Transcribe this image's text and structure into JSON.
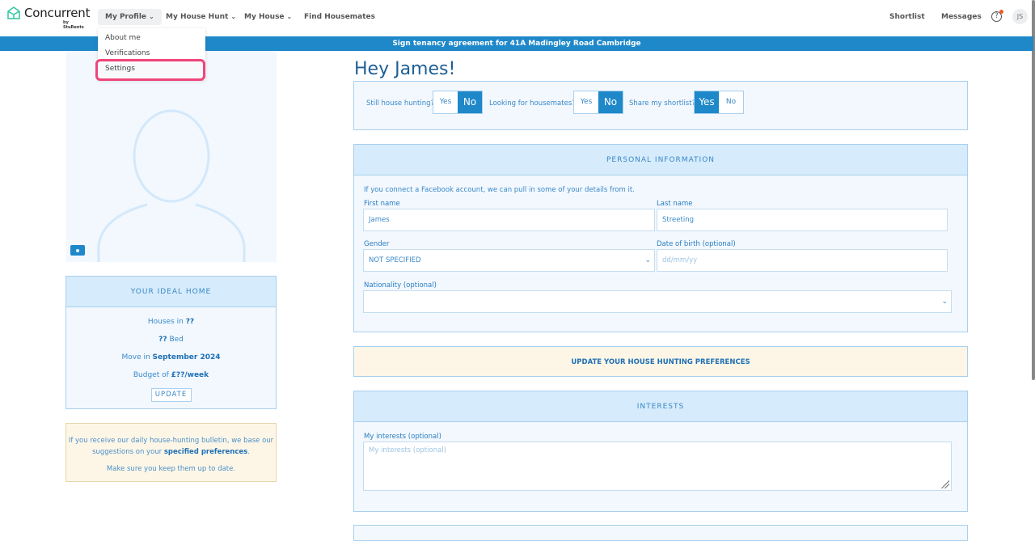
{
  "brand": {
    "name": "Concurrent",
    "sub": "by StuRents"
  },
  "nav": {
    "items": [
      {
        "label": "My Profile"
      },
      {
        "label": "My House Hunt"
      },
      {
        "label": "My House"
      },
      {
        "label": "Find Housemates"
      }
    ],
    "shortlist": "Shortlist",
    "messages": "Messages",
    "avatar": "JS"
  },
  "dropdown": {
    "items": [
      "About me",
      "Verifications",
      "Settings"
    ]
  },
  "banner": "Sign tenancy agreement for 41A Madingley Road Cambridge",
  "greeting": "Hey James!",
  "toggles": [
    {
      "label": "Still house hunting?",
      "yes": "Yes",
      "no": "No",
      "selected": "No"
    },
    {
      "label": "Looking for housemates?",
      "yes": "Yes",
      "no": "No",
      "selected": "No"
    },
    {
      "label": "Share my shortlist?",
      "yes": "Yes",
      "no": "No",
      "selected": "Yes"
    }
  ],
  "ideal": {
    "title": "YOUR IDEAL HOME",
    "houses_pre": "Houses in ",
    "houses_val": "??",
    "bed_val": "??",
    "bed_post": " Bed",
    "move_pre": "Move in ",
    "move_val": "September 2024",
    "budget_pre": "Budget of ",
    "budget_val": "£??/week",
    "update": "UPDATE"
  },
  "note": {
    "pre": "If you receive our daily house-hunting bulletin, we base our suggestions on your ",
    "link": "specified preferences",
    "post": ".",
    "line2": "Make sure you keep them up to date."
  },
  "personal": {
    "title": "PERSONAL INFORMATION",
    "intro": "If you connect a Facebook account, we can pull in some of your details from it.",
    "first_label": "First name",
    "first_value": "James",
    "last_label": "Last name",
    "last_value": "Streeting",
    "gender_label": "Gender",
    "gender_value": "NOT SPECIFIED",
    "dob_label": "Date of birth (optional)",
    "dob_placeholder": "dd/mm/yy",
    "nat_label": "Nationality (optional)",
    "nat_value": ""
  },
  "prefs_button": "UPDATE YOUR HOUSE HUNTING PREFERENCES",
  "interests": {
    "title": "INTERESTS",
    "label": "My interests (optional)",
    "placeholder": "My interests (optional)"
  },
  "colors": {
    "accent": "#1e88c9",
    "highlight": "#f0457a"
  }
}
